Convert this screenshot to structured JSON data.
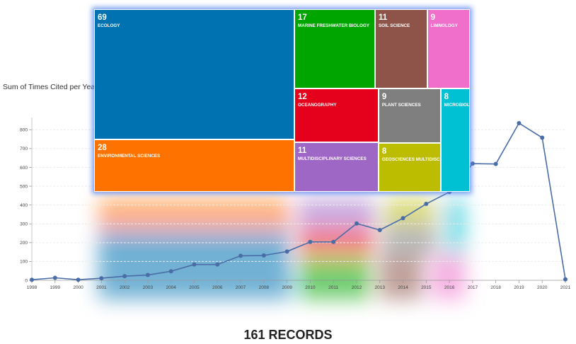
{
  "page": {
    "records_label": "161 RECORDS"
  },
  "chart_data": [
    {
      "type": "line",
      "ylabel": "Sum of Times Cited per Year",
      "xlabel": "",
      "x": [
        "1998",
        "1999",
        "2000",
        "2001",
        "2002",
        "2003",
        "2004",
        "2005",
        "2006",
        "2007",
        "2008",
        "2009",
        "2010",
        "2011",
        "2012",
        "2013",
        "2014",
        "2015",
        "2016",
        "2017",
        "2018",
        "2019",
        "2020",
        "2021"
      ],
      "values": [
        3,
        13,
        3,
        11,
        22,
        28,
        48,
        84,
        84,
        130,
        132,
        153,
        204,
        204,
        302,
        267,
        330,
        406,
        469,
        620,
        618,
        835,
        758,
        5
      ],
      "ylim": [
        0,
        850
      ],
      "yticks": [
        0,
        100,
        200,
        300,
        400,
        500,
        600,
        700,
        800
      ],
      "grid": true,
      "color": "#4a6da7"
    },
    {
      "type": "treemap",
      "cells": [
        {
          "label": "ECOLOGY",
          "value": 69,
          "color": "#0072b2"
        },
        {
          "label": "MARINE FRESHWATER BIOLOGY",
          "value": 17,
          "color": "#00a500"
        },
        {
          "label": "SOIL SCIENCE",
          "value": 11,
          "color": "#8f5449"
        },
        {
          "label": "LIMNOLOGY",
          "value": 9,
          "color": "#ef6fcb"
        },
        {
          "label": "OCEANOGRAPHY",
          "value": 12,
          "color": "#e5001c"
        },
        {
          "label": "PLANT SCIENCES",
          "value": 9,
          "color": "#7f7f7f"
        },
        {
          "label": "MICROBIOLOGY",
          "value": 8,
          "color": "#00c0d3"
        },
        {
          "label": "ENVIRONMENTAL SCIENCES",
          "value": 28,
          "color": "#fe7200"
        },
        {
          "label": "MULTIDISCIPLINARY SCIENCES",
          "value": 11,
          "color": "#9e66c5"
        },
        {
          "label": "GEOSCIENCES MULTIDISCIPLINARY",
          "value": 8,
          "color": "#bcbc00"
        }
      ]
    }
  ]
}
